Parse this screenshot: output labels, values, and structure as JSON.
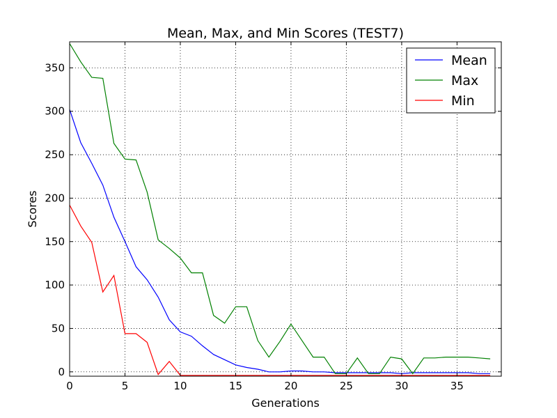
{
  "chart_data": {
    "type": "line",
    "title": "Mean, Max, and Min Scores (TEST7)",
    "xlabel": "Generations",
    "ylabel": "Scores",
    "xlim": [
      0,
      39
    ],
    "ylim": [
      -5,
      380
    ],
    "xticks": [
      0,
      5,
      10,
      15,
      20,
      25,
      30,
      35
    ],
    "yticks": [
      0,
      50,
      100,
      150,
      200,
      250,
      300,
      350
    ],
    "grid": true,
    "legend_position": "top-right",
    "x": [
      0,
      1,
      2,
      3,
      4,
      5,
      6,
      7,
      8,
      9,
      10,
      11,
      12,
      13,
      14,
      15,
      16,
      17,
      18,
      19,
      20,
      21,
      22,
      23,
      24,
      25,
      26,
      27,
      28,
      29,
      30,
      31,
      32,
      33,
      34,
      35,
      36,
      37,
      38
    ],
    "series": [
      {
        "name": "Mean",
        "color": "#0000ff",
        "values": [
          302,
          264,
          240,
          215,
          178,
          150,
          121,
          106,
          86,
          60,
          46,
          41,
          30,
          20,
          14,
          8,
          5,
          3,
          0,
          0,
          1,
          1,
          0,
          0,
          -1,
          -1,
          -1,
          -1,
          -1,
          -1,
          -2,
          -1,
          -1,
          -1,
          -1,
          -1,
          -1,
          -2,
          -2
        ]
      },
      {
        "name": "Max",
        "color": "#008000",
        "values": [
          378,
          357,
          339,
          338,
          263,
          245,
          244,
          207,
          152,
          142,
          131,
          114,
          114,
          65,
          56,
          75,
          75,
          36,
          17,
          35,
          55,
          36,
          17,
          17,
          -2,
          -2,
          16,
          -2,
          -2,
          17,
          15,
          -2,
          16,
          16,
          17,
          17,
          17,
          16,
          15
        ]
      },
      {
        "name": "Min",
        "color": "#ff0000",
        "values": [
          192,
          168,
          149,
          92,
          111,
          44,
          44,
          34,
          -3,
          12,
          -4,
          -4,
          -4,
          -4,
          -4,
          -4,
          -4,
          -4,
          -4,
          -4,
          -4,
          -4,
          -4,
          -4,
          -4,
          -4,
          -4,
          -4,
          -4,
          -4,
          -4,
          -4,
          -4,
          -4,
          -4,
          -4,
          -4,
          -4,
          -4
        ]
      }
    ]
  }
}
